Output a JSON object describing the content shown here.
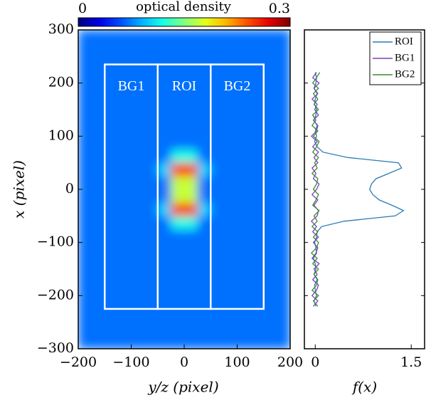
{
  "chart_data": [
    {
      "type": "heatmap",
      "xlabel": "y/z (pixel)",
      "ylabel": "x (pixel)",
      "colorbar_label": "optical density",
      "clim": [
        0,
        0.3
      ],
      "cticks": [
        0,
        0.3
      ],
      "colormap": "jet",
      "xlim": [
        -200,
        200
      ],
      "xticks": [
        {
          "value": -200,
          "label": "−200"
        },
        {
          "value": -100,
          "label": "−100"
        },
        0,
        100,
        200
      ],
      "ylim": [
        -300,
        300
      ],
      "yticks": [
        {
          "value": -300,
          "label": "−300"
        },
        {
          "value": -200,
          "label": "−200"
        },
        {
          "value": -100,
          "label": "−100"
        },
        0,
        100,
        200,
        300
      ],
      "xbins": [
        -200,
        -175,
        -150,
        -125,
        -100,
        -75,
        -50,
        -25,
        0,
        25,
        50,
        75,
        100,
        125,
        150,
        175,
        200
      ],
      "ybins": [
        -300,
        -275,
        -250,
        -225,
        -200,
        -175,
        -150,
        -125,
        -100,
        -75,
        -50,
        -25,
        0,
        25,
        50,
        75,
        100,
        125,
        150,
        175,
        200,
        225,
        250,
        275,
        300
      ],
      "values": [
        [
          0.07,
          0.07,
          0.07,
          0.07,
          0.07,
          0.07,
          0.07,
          0.07,
          0.07,
          0.07,
          0.07,
          0.07,
          0.07,
          0.07,
          0.07,
          0.07
        ],
        [
          0.07,
          0.07,
          0.07,
          0.07,
          0.07,
          0.07,
          0.07,
          0.07,
          0.07,
          0.07,
          0.07,
          0.07,
          0.07,
          0.07,
          0.07,
          0.07
        ],
        [
          0.07,
          0.07,
          0.07,
          0.07,
          0.07,
          0.07,
          0.07,
          0.07,
          0.07,
          0.07,
          0.07,
          0.07,
          0.07,
          0.07,
          0.07,
          0.07
        ],
        [
          0.07,
          0.07,
          0.07,
          0.07,
          0.07,
          0.07,
          0.07,
          0.07,
          0.07,
          0.07,
          0.07,
          0.07,
          0.07,
          0.07,
          0.07,
          0.07
        ],
        [
          0.07,
          0.07,
          0.07,
          0.07,
          0.07,
          0.07,
          0.07,
          0.07,
          0.07,
          0.07,
          0.07,
          0.07,
          0.07,
          0.07,
          0.07,
          0.07
        ],
        [
          0.07,
          0.07,
          0.07,
          0.07,
          0.07,
          0.07,
          0.07,
          0.07,
          0.07,
          0.07,
          0.07,
          0.07,
          0.07,
          0.07,
          0.07,
          0.07
        ],
        [
          0.07,
          0.07,
          0.07,
          0.07,
          0.07,
          0.07,
          0.07,
          0.07,
          0.07,
          0.07,
          0.07,
          0.07,
          0.07,
          0.07,
          0.07,
          0.07
        ],
        [
          0.07,
          0.07,
          0.07,
          0.07,
          0.07,
          0.07,
          0.07,
          0.07,
          0.07,
          0.07,
          0.07,
          0.07,
          0.07,
          0.07,
          0.07,
          0.07
        ],
        [
          0.07,
          0.07,
          0.07,
          0.07,
          0.07,
          0.07,
          0.07,
          0.07,
          0.07,
          0.07,
          0.07,
          0.07,
          0.07,
          0.07,
          0.07,
          0.07
        ],
        [
          0.07,
          0.07,
          0.07,
          0.07,
          0.07,
          0.07,
          0.07,
          0.12,
          0.12,
          0.07,
          0.07,
          0.07,
          0.07,
          0.07,
          0.07,
          0.07
        ],
        [
          0.07,
          0.07,
          0.07,
          0.07,
          0.07,
          0.07,
          0.1,
          0.25,
          0.25,
          0.1,
          0.07,
          0.07,
          0.07,
          0.07,
          0.07,
          0.07
        ],
        [
          0.07,
          0.07,
          0.07,
          0.07,
          0.07,
          0.07,
          0.07,
          0.17,
          0.17,
          0.07,
          0.07,
          0.07,
          0.07,
          0.07,
          0.07,
          0.07
        ],
        [
          0.07,
          0.07,
          0.07,
          0.07,
          0.07,
          0.07,
          0.07,
          0.17,
          0.17,
          0.07,
          0.07,
          0.07,
          0.07,
          0.07,
          0.07,
          0.07
        ],
        [
          0.07,
          0.07,
          0.07,
          0.07,
          0.07,
          0.07,
          0.1,
          0.25,
          0.25,
          0.1,
          0.07,
          0.07,
          0.07,
          0.07,
          0.07,
          0.07
        ],
        [
          0.07,
          0.07,
          0.07,
          0.07,
          0.07,
          0.07,
          0.07,
          0.12,
          0.12,
          0.07,
          0.07,
          0.07,
          0.07,
          0.07,
          0.07,
          0.07
        ],
        [
          0.07,
          0.07,
          0.07,
          0.07,
          0.07,
          0.07,
          0.07,
          0.07,
          0.07,
          0.07,
          0.07,
          0.07,
          0.07,
          0.07,
          0.07,
          0.07
        ],
        [
          0.07,
          0.07,
          0.07,
          0.07,
          0.07,
          0.07,
          0.07,
          0.07,
          0.07,
          0.07,
          0.07,
          0.07,
          0.07,
          0.07,
          0.07,
          0.07
        ],
        [
          0.07,
          0.07,
          0.07,
          0.07,
          0.07,
          0.07,
          0.07,
          0.07,
          0.07,
          0.07,
          0.07,
          0.07,
          0.07,
          0.07,
          0.07,
          0.07
        ],
        [
          0.07,
          0.07,
          0.07,
          0.07,
          0.07,
          0.07,
          0.07,
          0.07,
          0.07,
          0.07,
          0.07,
          0.07,
          0.07,
          0.07,
          0.07,
          0.07
        ],
        [
          0.07,
          0.07,
          0.07,
          0.07,
          0.07,
          0.07,
          0.07,
          0.07,
          0.07,
          0.07,
          0.07,
          0.07,
          0.07,
          0.07,
          0.07,
          0.07
        ],
        [
          0.07,
          0.07,
          0.07,
          0.07,
          0.07,
          0.07,
          0.07,
          0.07,
          0.07,
          0.07,
          0.07,
          0.07,
          0.07,
          0.07,
          0.07,
          0.07
        ],
        [
          0.07,
          0.07,
          0.07,
          0.07,
          0.07,
          0.07,
          0.07,
          0.07,
          0.07,
          0.07,
          0.07,
          0.07,
          0.07,
          0.07,
          0.07,
          0.07
        ],
        [
          0.07,
          0.07,
          0.07,
          0.07,
          0.07,
          0.07,
          0.07,
          0.07,
          0.07,
          0.07,
          0.07,
          0.07,
          0.07,
          0.07,
          0.07,
          0.07
        ],
        [
          0.07,
          0.07,
          0.07,
          0.07,
          0.07,
          0.07,
          0.07,
          0.07,
          0.07,
          0.07,
          0.07,
          0.07,
          0.07,
          0.07,
          0.07,
          0.07
        ]
      ],
      "regions": [
        {
          "label": "BG1",
          "x": [
            -150,
            -50
          ],
          "y": [
            -225,
            235
          ]
        },
        {
          "label": "ROI",
          "x": [
            -50,
            50
          ],
          "y": [
            -225,
            235
          ]
        },
        {
          "label": "BG2",
          "x": [
            50,
            150
          ],
          "y": [
            -225,
            235
          ]
        }
      ]
    },
    {
      "type": "line",
      "xlabel": "f(x)",
      "xlim": [
        -0.17,
        1.72
      ],
      "xticks": [
        0,
        1.5
      ],
      "ylim": [
        -300,
        300
      ],
      "yticks": [
        -200,
        -100,
        0,
        100,
        200
      ],
      "legend": "upper right",
      "y": [
        -220,
        -210,
        -200,
        -190,
        -180,
        -170,
        -160,
        -150,
        -140,
        -130,
        -120,
        -110,
        -100,
        -90,
        -80,
        -70,
        -60,
        -50,
        -40,
        -30,
        -20,
        -10,
        0,
        10,
        20,
        30,
        40,
        50,
        60,
        70,
        80,
        90,
        100,
        110,
        120,
        130,
        140,
        150,
        160,
        170,
        180,
        190,
        200,
        210,
        220
      ],
      "series": [
        {
          "name": "ROI",
          "color": "#2b7bb5",
          "values": [
            0.01,
            -0.02,
            0.02,
            0,
            -0.01,
            0.03,
            -0.02,
            0.01,
            0,
            -0.03,
            0.02,
            0.01,
            -0.01,
            0.02,
            0.03,
            0.1,
            0.45,
            1.25,
            1.38,
            1.2,
            1.0,
            0.9,
            0.85,
            0.88,
            0.95,
            1.15,
            1.35,
            1.3,
            0.5,
            0.12,
            0.03,
            -0.01,
            0.02,
            0,
            0.03,
            -0.02,
            0.01,
            0.02,
            -0.01,
            0,
            0.03,
            -0.02,
            0.01,
            0.02,
            0
          ]
        },
        {
          "name": "BG1",
          "color": "#7b3fbf",
          "values": [
            -0.03,
            0.04,
            -0.05,
            0.02,
            0.05,
            -0.04,
            0.03,
            -0.02,
            0.06,
            -0.05,
            0.01,
            0.04,
            -0.03,
            0.05,
            -0.04,
            0.02,
            -0.06,
            0.03,
            0.05,
            -0.02,
            0.04,
            -0.05,
            0.02,
            0.06,
            -0.03,
            0.01,
            -0.05,
            0.04,
            -0.02,
            0.05,
            -0.04,
            0.03,
            -0.06,
            0.02,
            0.04,
            -0.03,
            0.05,
            -0.01,
            0.03,
            -0.05,
            0.04,
            -0.02,
            0.06,
            -0.04,
            0.02
          ]
        },
        {
          "name": "BG2",
          "color": "#3d8b2e",
          "values": [
            0.04,
            -0.03,
            0.05,
            -0.05,
            0.02,
            0.04,
            -0.02,
            0.05,
            -0.04,
            0.03,
            -0.06,
            0.02,
            0.05,
            -0.03,
            0.04,
            -0.05,
            0.03,
            -0.02,
            0.06,
            -0.04,
            0.01,
            0.05,
            -0.03,
            0.02,
            0.04,
            -0.05,
            0.03,
            -0.01,
            0.05,
            -0.04,
            0.02,
            0.06,
            -0.03,
            0.04,
            -0.05,
            0.01,
            -0.04,
            0.05,
            -0.02,
            0.04,
            -0.03,
            0.05,
            -0.04,
            0.02,
            0.07
          ]
        }
      ]
    }
  ]
}
